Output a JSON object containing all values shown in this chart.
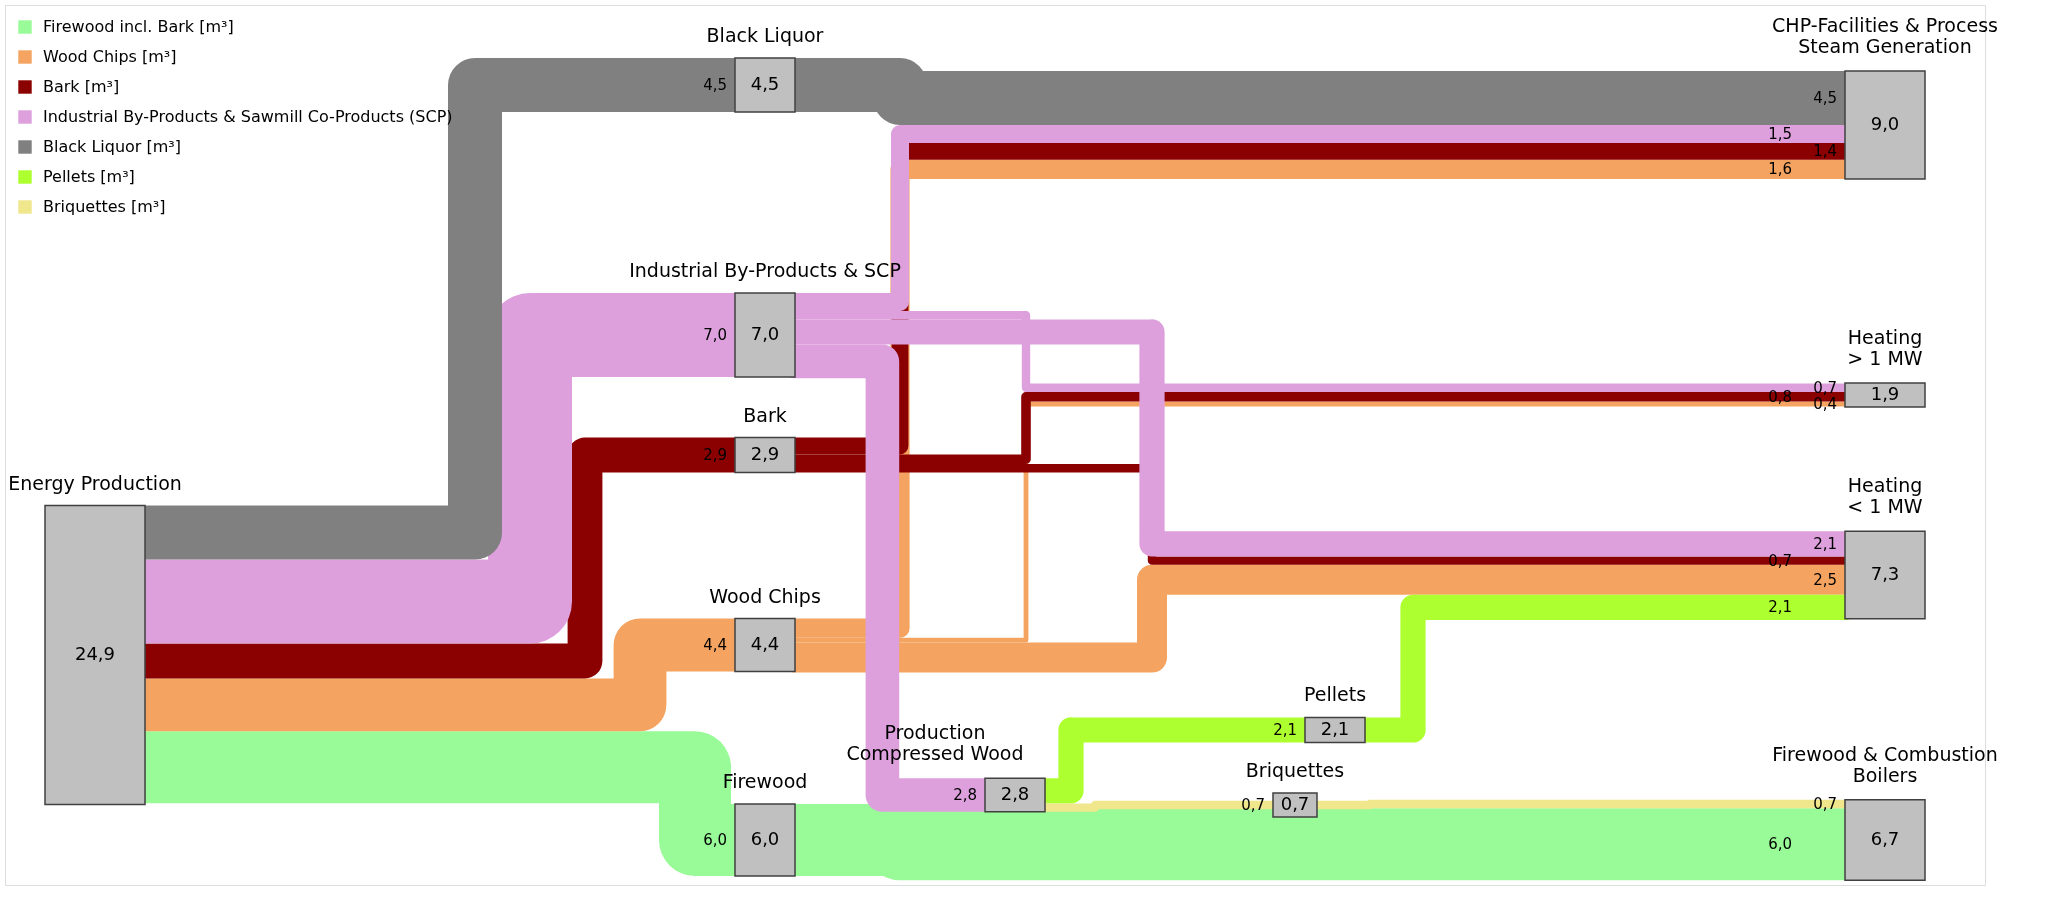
{
  "chart_data": {
    "type": "other",
    "categories": [
      "Energy Production",
      "Black Liquor",
      "Industrial By-Products & SCP",
      "Bark",
      "Wood Chips",
      "Production\nCompressed Wood",
      "Pellets",
      "Briquettes",
      "Firewood",
      "CHP-Facilities & Process\nSteam Generation",
      "Heating\n> 1 MW",
      "Heating\n< 1 MW",
      "Firewood & Combustion\nBoilers"
    ],
    "values": [
      24.9,
      4.5,
      7.0,
      2.9,
      4.4,
      2.8,
      2.1,
      0.7,
      6.0,
      9.0,
      1.9,
      7.3,
      6.7
    ],
    "value_labels": [
      "24,9",
      "4,5",
      "7,0",
      "2,9",
      "4,4",
      "2,8",
      "2,1",
      "0,7",
      "6,0",
      "9,0",
      "1,9",
      "7,3",
      "6,7"
    ],
    "series": [
      {
        "name": "Firewood incl. Bark [m³]",
        "color": "#98fb98",
        "values": [
          null,
          null,
          null,
          null,
          null,
          null,
          null,
          null,
          6.0,
          null,
          null,
          null,
          6.0
        ],
        "value_labels": [
          null,
          null,
          null,
          null,
          null,
          null,
          null,
          null,
          "6,0",
          null,
          null,
          null,
          "6,0"
        ]
      },
      {
        "name": "Wood Chips [m³]",
        "color": "#f4a460",
        "values": [
          null,
          null,
          null,
          null,
          4.4,
          null,
          null,
          null,
          null,
          1.6,
          0.4,
          2.5,
          null
        ],
        "value_labels": [
          null,
          null,
          null,
          null,
          "4,4",
          null,
          null,
          null,
          null,
          "1,6",
          "0,4",
          "2,5",
          null
        ]
      },
      {
        "name": "Bark [m³]",
        "color": "#8b0000",
        "values": [
          null,
          null,
          null,
          2.9,
          null,
          null,
          null,
          null,
          null,
          1.4,
          0.8,
          0.7,
          null
        ],
        "value_labels": [
          null,
          null,
          null,
          "2,9",
          null,
          null,
          null,
          null,
          null,
          "1,4",
          "0,8",
          "0,7",
          null
        ]
      },
      {
        "name": "Industrial By-Products & Sawmill Co-Products (SCP)",
        "color": "#dda0dd",
        "values": [
          null,
          null,
          7.0,
          null,
          null,
          2.8,
          null,
          null,
          null,
          1.5,
          0.7,
          2.1,
          null
        ],
        "value_labels": [
          null,
          null,
          "7,0",
          null,
          null,
          "2,8",
          null,
          null,
          null,
          "1,5",
          "0,7",
          "2,1",
          null
        ]
      },
      {
        "name": "Black Liquor [m³]",
        "color": "#808080",
        "values": [
          null,
          4.5,
          null,
          null,
          null,
          null,
          null,
          null,
          null,
          4.5,
          null,
          null,
          null
        ],
        "value_labels": [
          null,
          "4,5",
          null,
          null,
          null,
          null,
          null,
          null,
          null,
          "4,5",
          null,
          null,
          null
        ]
      },
      {
        "name": "Pellets [m³]",
        "color": "#adff2f",
        "values": [
          null,
          null,
          null,
          null,
          null,
          null,
          2.1,
          null,
          null,
          null,
          null,
          2.1,
          null
        ],
        "value_labels": [
          null,
          null,
          null,
          null,
          null,
          null,
          "2,1",
          null,
          null,
          null,
          null,
          "2,1",
          null
        ]
      },
      {
        "name": "Briquettes [m³]",
        "color": "#f0e68c",
        "values": [
          null,
          null,
          null,
          null,
          null,
          null,
          null,
          0.7,
          null,
          null,
          null,
          null,
          0.7
        ],
        "value_labels": [
          null,
          null,
          null,
          null,
          null,
          null,
          null,
          "0,7",
          null,
          null,
          null,
          null,
          "0,7"
        ]
      }
    ],
    "data_labels": true,
    "legend": "top left"
  }
}
